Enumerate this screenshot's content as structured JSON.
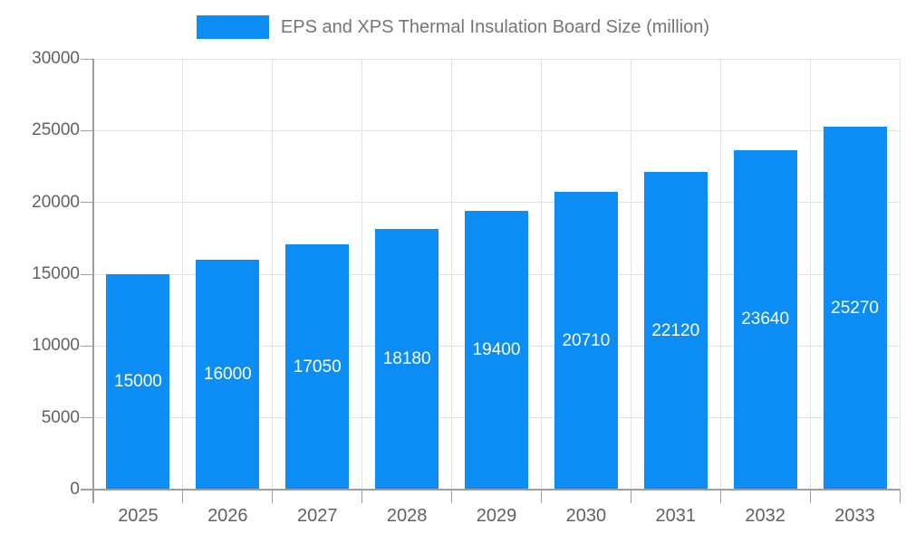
{
  "chart_data": {
    "type": "bar",
    "title": "EPS and XPS Thermal Insulation Board Size (million)",
    "categories": [
      "2025",
      "2026",
      "2027",
      "2028",
      "2029",
      "2030",
      "2031",
      "2032",
      "2033"
    ],
    "series": [
      {
        "name": "EPS and XPS Thermal Insulation Board Size (million)",
        "values": [
          15000,
          16000,
          17050,
          18180,
          19400,
          20710,
          22120,
          23640,
          25270
        ]
      }
    ],
    "xlabel": "",
    "ylabel": "",
    "ylim": [
      0,
      30000
    ],
    "ytick_step": 5000,
    "ytick_labels": [
      "0",
      "5000",
      "10000",
      "15000",
      "20000",
      "25000",
      "30000"
    ],
    "grid": true,
    "legend_position": "top",
    "bar_value_labels_inside": true
  },
  "palette": {
    "bar": "#0b8df5",
    "bar_label": "#ffffff",
    "grid_h": "#e0e0e0",
    "grid_v": "#e4e4e4",
    "axis": "#9e9e9e",
    "tick_label": "#616161",
    "title": "#757575",
    "background": "#ffffff"
  }
}
